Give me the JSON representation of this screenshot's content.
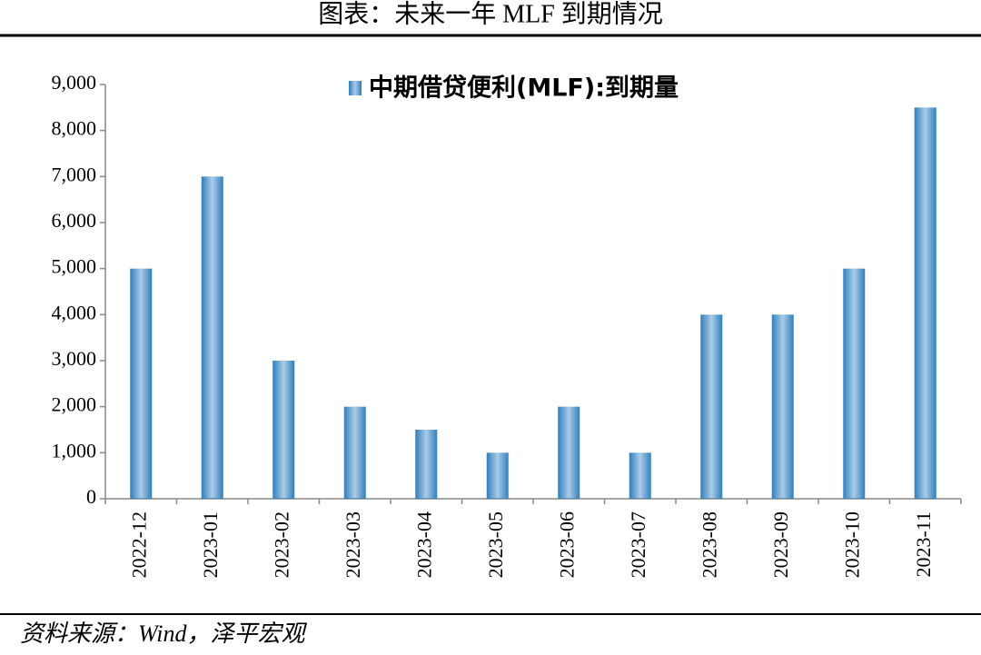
{
  "chart_data": {
    "type": "bar",
    "title": "图表：未来一年 MLF 到期情况",
    "categories": [
      "2022-12",
      "2023-01",
      "2023-02",
      "2023-03",
      "2023-04",
      "2023-05",
      "2023-06",
      "2023-07",
      "2023-08",
      "2023-09",
      "2023-10",
      "2023-11"
    ],
    "series": [
      {
        "name": "中期借贷便利(MLF):到期量",
        "color": "#2e7fbf",
        "values": [
          5000,
          7000,
          3000,
          2000,
          1500,
          1000,
          2000,
          1000,
          4000,
          4000,
          5000,
          8500
        ]
      }
    ],
    "ylim": [
      0,
      9000
    ],
    "yticks": [
      0,
      {
        "value": 1000,
        "label": "1,000"
      },
      {
        "value": 2000,
        "label": "2,000"
      },
      {
        "value": 3000,
        "label": "3,000"
      },
      {
        "value": 4000,
        "label": "4,000"
      },
      {
        "value": 5000,
        "label": "5,000"
      },
      {
        "value": 6000,
        "label": "6,000"
      },
      {
        "value": 7000,
        "label": "7,000"
      },
      {
        "value": 8000,
        "label": "8,000"
      },
      {
        "value": 9000,
        "label": "9,000"
      }
    ],
    "grid": false,
    "legend": "top",
    "source": "资料来源：Wind，泽平宏观"
  }
}
